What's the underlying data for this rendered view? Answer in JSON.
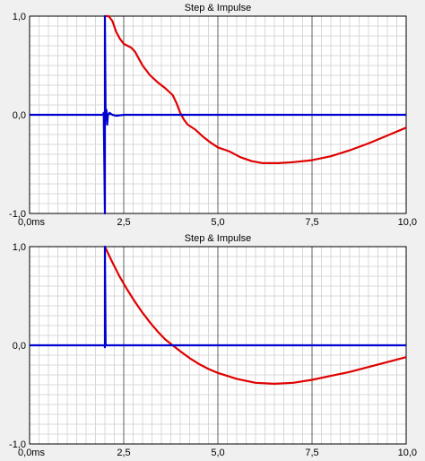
{
  "chart_data": [
    {
      "type": "line",
      "title": "Step & Impulse",
      "xlabel": "",
      "ylabel": "",
      "x_unit_label": "0,0ms",
      "xlim": [
        0,
        10
      ],
      "ylim": [
        -1,
        1
      ],
      "x_ticks": [
        {
          "value": 0,
          "label": "0,0ms"
        },
        {
          "value": 2.5,
          "label": "2,5"
        },
        {
          "value": 5,
          "label": "5,0"
        },
        {
          "value": 7.5,
          "label": "7,5"
        },
        {
          "value": 10,
          "label": "10,0"
        }
      ],
      "y_ticks": [
        {
          "value": 1,
          "label": "1,0"
        },
        {
          "value": 0,
          "label": "0,0"
        },
        {
          "value": -1,
          "label": "-1,0"
        }
      ],
      "grid": true,
      "legend": "none",
      "series": [
        {
          "color": "#e00000",
          "points": [
            [
              2.0,
              1.0
            ],
            [
              2.1,
              1.0
            ],
            [
              2.2,
              0.95
            ],
            [
              2.3,
              0.84
            ],
            [
              2.4,
              0.77
            ],
            [
              2.5,
              0.72
            ],
            [
              2.6,
              0.7
            ],
            [
              2.7,
              0.68
            ],
            [
              2.8,
              0.64
            ],
            [
              2.9,
              0.57
            ],
            [
              3.0,
              0.5
            ],
            [
              3.2,
              0.4
            ],
            [
              3.4,
              0.33
            ],
            [
              3.6,
              0.27
            ],
            [
              3.8,
              0.2
            ],
            [
              3.9,
              0.12
            ],
            [
              4.0,
              0.02
            ],
            [
              4.1,
              -0.05
            ],
            [
              4.2,
              -0.1
            ],
            [
              4.4,
              -0.15
            ],
            [
              4.6,
              -0.22
            ],
            [
              4.8,
              -0.28
            ],
            [
              5.0,
              -0.33
            ],
            [
              5.3,
              -0.37
            ],
            [
              5.6,
              -0.43
            ],
            [
              5.9,
              -0.47
            ],
            [
              6.2,
              -0.49
            ],
            [
              6.6,
              -0.49
            ],
            [
              7.0,
              -0.48
            ],
            [
              7.5,
              -0.46
            ],
            [
              8.0,
              -0.42
            ],
            [
              8.5,
              -0.36
            ],
            [
              9.0,
              -0.29
            ],
            [
              9.5,
              -0.21
            ],
            [
              10.0,
              -0.13
            ]
          ]
        },
        {
          "color": "#0000d0",
          "points": [
            [
              0,
              0
            ],
            [
              1.95,
              0
            ],
            [
              1.97,
              0.02
            ],
            [
              2.0,
              -1.0
            ],
            [
              2.0,
              1.0
            ],
            [
              2.02,
              -0.03
            ],
            [
              2.04,
              0.05
            ],
            [
              2.06,
              -0.1
            ],
            [
              2.08,
              0.0
            ],
            [
              2.12,
              0.02
            ],
            [
              2.2,
              0.0
            ],
            [
              2.3,
              -0.01
            ],
            [
              2.5,
              0.0
            ],
            [
              10.0,
              0.0
            ]
          ]
        }
      ]
    },
    {
      "type": "line",
      "title": "Step & Impulse",
      "xlabel": "",
      "ylabel": "",
      "x_unit_label": "0,0ms",
      "xlim": [
        0,
        10
      ],
      "ylim": [
        -1,
        1
      ],
      "x_ticks": [
        {
          "value": 0,
          "label": "0,0ms"
        },
        {
          "value": 2.5,
          "label": "2,5"
        },
        {
          "value": 5,
          "label": "5,0"
        },
        {
          "value": 7.5,
          "label": "7,5"
        },
        {
          "value": 10,
          "label": "10,0"
        }
      ],
      "y_ticks": [
        {
          "value": 1,
          "label": "1,0"
        },
        {
          "value": 0,
          "label": "0,0"
        },
        {
          "value": -1,
          "label": "-1,0"
        }
      ],
      "grid": true,
      "legend": "none",
      "series": [
        {
          "color": "#e00000",
          "points": [
            [
              2.0,
              1.0
            ],
            [
              2.2,
              0.84
            ],
            [
              2.4,
              0.69
            ],
            [
              2.6,
              0.56
            ],
            [
              2.8,
              0.44
            ],
            [
              3.0,
              0.33
            ],
            [
              3.2,
              0.23
            ],
            [
              3.4,
              0.14
            ],
            [
              3.6,
              0.06
            ],
            [
              3.8,
              0.0
            ],
            [
              4.0,
              -0.06
            ],
            [
              4.25,
              -0.13
            ],
            [
              4.5,
              -0.19
            ],
            [
              4.75,
              -0.24
            ],
            [
              5.0,
              -0.28
            ],
            [
              5.5,
              -0.34
            ],
            [
              6.0,
              -0.38
            ],
            [
              6.5,
              -0.39
            ],
            [
              7.0,
              -0.38
            ],
            [
              7.5,
              -0.35
            ],
            [
              8.0,
              -0.31
            ],
            [
              8.5,
              -0.27
            ],
            [
              9.0,
              -0.22
            ],
            [
              9.5,
              -0.17
            ],
            [
              10.0,
              -0.12
            ]
          ]
        },
        {
          "color": "#0000d0",
          "points": [
            [
              0,
              0
            ],
            [
              1.99,
              0
            ],
            [
              2.0,
              -0.02
            ],
            [
              2.0,
              1.0
            ],
            [
              2.02,
              0.0
            ],
            [
              10.0,
              0.0
            ]
          ]
        }
      ]
    }
  ]
}
